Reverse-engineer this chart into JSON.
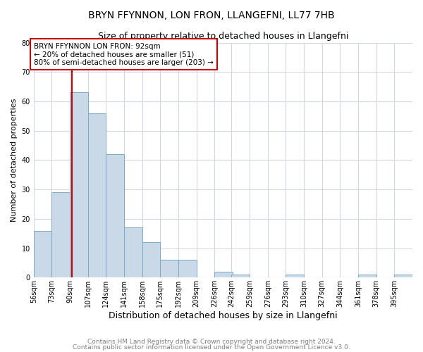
{
  "title": "BRYN FFYNNON, LON FRON, LLANGEFNI, LL77 7HB",
  "subtitle": "Size of property relative to detached houses in Llangefni",
  "xlabel": "Distribution of detached houses by size in Llangefni",
  "ylabel": "Number of detached properties",
  "bin_edges": [
    56,
    73,
    90,
    107,
    124,
    141,
    158,
    175,
    192,
    209,
    226,
    242,
    259,
    276,
    293,
    310,
    327,
    344,
    361,
    378,
    395
  ],
  "bar_heights": [
    16,
    29,
    63,
    56,
    42,
    17,
    12,
    6,
    6,
    0,
    2,
    1,
    0,
    0,
    1,
    0,
    0,
    0,
    1,
    0,
    1
  ],
  "bar_color": "#c9d9e8",
  "bar_edge_color": "#7aaac8",
  "property_line_x": 92,
  "property_line_color": "#cc0000",
  "annotation_text": "BRYN FFYNNON LON FRON: 92sqm\n← 20% of detached houses are smaller (51)\n80% of semi-detached houses are larger (203) →",
  "annotation_box_color": "#ffffff",
  "annotation_box_edge_color": "#cc0000",
  "ylim": [
    0,
    80
  ],
  "yticks": [
    0,
    10,
    20,
    30,
    40,
    50,
    60,
    70,
    80
  ],
  "footer_line1": "Contains HM Land Registry data © Crown copyright and database right 2024.",
  "footer_line2": "Contains public sector information licensed under the Open Government Licence v3.0.",
  "background_color": "#ffffff",
  "grid_color": "#d0d8e8",
  "title_fontsize": 10,
  "subtitle_fontsize": 9,
  "annotation_fontsize": 7.5,
  "tick_label_fontsize": 7,
  "ylabel_fontsize": 8,
  "xlabel_fontsize": 9,
  "footer_fontsize": 6.5,
  "footer_color": "#808080"
}
